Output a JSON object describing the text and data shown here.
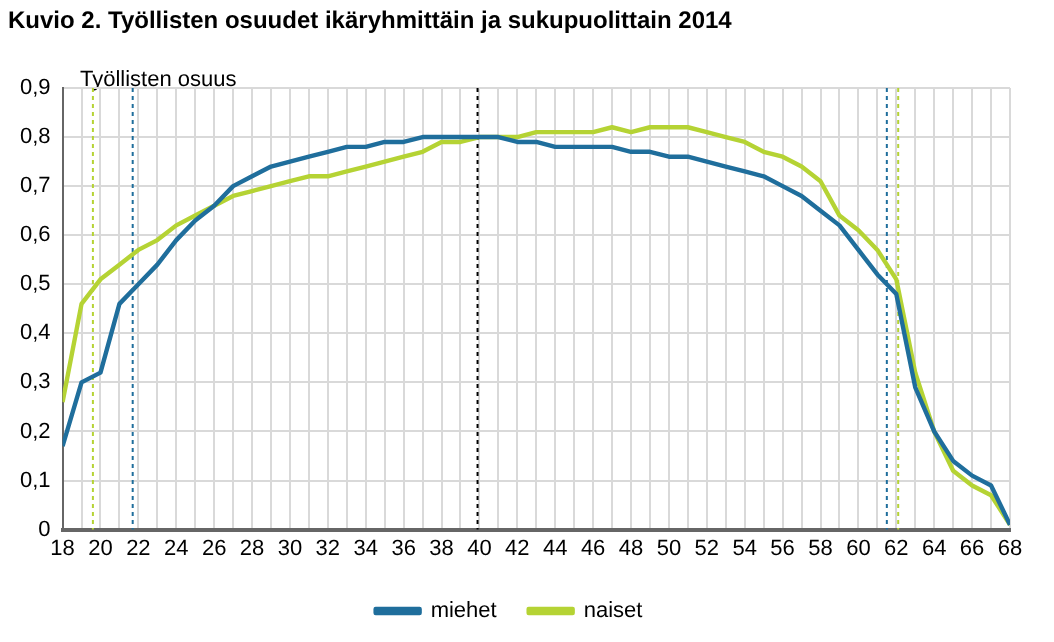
{
  "chart_data": {
    "type": "line",
    "title": "Kuvio 2. Työllisten osuudet ikäryhmittäin ja sukupuolittain 2014",
    "ylabel": "Työllisten osuus",
    "x": [
      18,
      19,
      20,
      21,
      22,
      23,
      24,
      25,
      26,
      27,
      28,
      29,
      30,
      31,
      32,
      33,
      34,
      35,
      36,
      37,
      38,
      39,
      40,
      41,
      42,
      43,
      44,
      45,
      46,
      47,
      48,
      49,
      50,
      51,
      52,
      53,
      54,
      55,
      56,
      57,
      58,
      59,
      60,
      61,
      62,
      63,
      64,
      65,
      66,
      67,
      68
    ],
    "series": [
      {
        "name": "miehet",
        "color": "#1f6e9c",
        "values": [
          0.17,
          0.3,
          0.32,
          0.46,
          0.5,
          0.54,
          0.59,
          0.63,
          0.66,
          0.7,
          0.72,
          0.74,
          0.75,
          0.76,
          0.77,
          0.78,
          0.78,
          0.79,
          0.79,
          0.8,
          0.8,
          0.8,
          0.8,
          0.8,
          0.79,
          0.79,
          0.78,
          0.78,
          0.78,
          0.78,
          0.77,
          0.77,
          0.76,
          0.76,
          0.75,
          0.74,
          0.73,
          0.72,
          0.7,
          0.68,
          0.65,
          0.62,
          0.57,
          0.52,
          0.48,
          0.29,
          0.2,
          0.14,
          0.11,
          0.09,
          0.01
        ]
      },
      {
        "name": "naiset",
        "color": "#b5d334",
        "values": [
          0.26,
          0.46,
          0.51,
          0.54,
          0.57,
          0.59,
          0.62,
          0.64,
          0.66,
          0.68,
          0.69,
          0.7,
          0.71,
          0.72,
          0.72,
          0.73,
          0.74,
          0.75,
          0.76,
          0.77,
          0.79,
          0.79,
          0.8,
          0.8,
          0.8,
          0.81,
          0.81,
          0.81,
          0.81,
          0.82,
          0.81,
          0.82,
          0.82,
          0.82,
          0.81,
          0.8,
          0.79,
          0.77,
          0.76,
          0.74,
          0.71,
          0.64,
          0.61,
          0.57,
          0.51,
          0.32,
          0.2,
          0.12,
          0.09,
          0.07,
          0.01
        ]
      }
    ],
    "xlim": [
      18,
      68
    ],
    "xticks": [
      18,
      {
        "value": 19,
        "label": null
      },
      20,
      {
        "value": 21,
        "label": null
      },
      22,
      {
        "value": 23,
        "label": null
      },
      24,
      {
        "value": 25,
        "label": null
      },
      26,
      {
        "value": 27,
        "label": null
      },
      28,
      {
        "value": 29,
        "label": null
      },
      30,
      {
        "value": 31,
        "label": null
      },
      32,
      {
        "value": 33,
        "label": null
      },
      34,
      {
        "value": 35,
        "label": null
      },
      36,
      {
        "value": 37,
        "label": null
      },
      38,
      {
        "value": 39,
        "label": null
      },
      40,
      {
        "value": 41,
        "label": null
      },
      42,
      {
        "value": 43,
        "label": null
      },
      44,
      {
        "value": 45,
        "label": null
      },
      46,
      {
        "value": 47,
        "label": null
      },
      48,
      {
        "value": 49,
        "label": null
      },
      50,
      {
        "value": 51,
        "label": null
      },
      52,
      {
        "value": 53,
        "label": null
      },
      54,
      {
        "value": 55,
        "label": null
      },
      56,
      {
        "value": 57,
        "label": null
      },
      58,
      {
        "value": 59,
        "label": null
      },
      60,
      {
        "value": 61,
        "label": null
      },
      62,
      {
        "value": 63,
        "label": null
      },
      64,
      {
        "value": 65,
        "label": null
      },
      66,
      {
        "value": 67,
        "label": null
      },
      68
    ],
    "ylim": [
      0,
      0.9
    ],
    "yticks": [
      {
        "value": 0,
        "label": "0"
      },
      {
        "value": 0.1,
        "label": "0,1"
      },
      {
        "value": 0.2,
        "label": "0,2"
      },
      {
        "value": 0.3,
        "label": "0,3"
      },
      {
        "value": 0.4,
        "label": "0,4"
      },
      {
        "value": 0.5,
        "label": "0,5"
      },
      {
        "value": 0.6,
        "label": "0,6"
      },
      {
        "value": 0.7,
        "label": "0,7"
      },
      {
        "value": 0.8,
        "label": "0,8"
      },
      {
        "value": 0.9,
        "label": "0,9"
      }
    ],
    "ref_lines": [
      {
        "axis": "x",
        "value": 19.6,
        "color": "#b5d334",
        "line_style": "dotted"
      },
      {
        "axis": "x",
        "value": 21.7,
        "color": "#1f6e9c",
        "line_style": "dotted"
      },
      {
        "axis": "x",
        "value": 39.9,
        "color": "#000000",
        "line_style": "dotted"
      },
      {
        "axis": "x",
        "value": 61.5,
        "color": "#1f6e9c",
        "line_style": "dotted"
      },
      {
        "axis": "x",
        "value": 62.1,
        "color": "#b5d334",
        "line_style": "dotted"
      }
    ],
    "grid": true,
    "legend": "bottom",
    "marker": "none",
    "line_style": "solid"
  }
}
